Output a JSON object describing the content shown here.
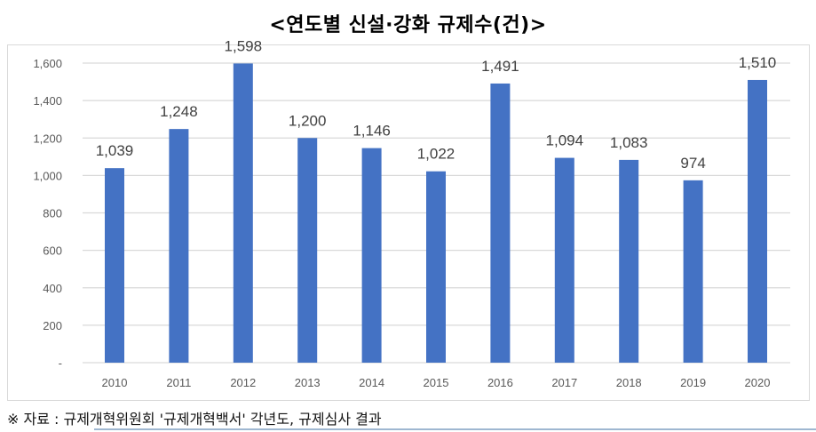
{
  "title": "<연도별 신설·강화 규제수(건)>",
  "source_note": "※ 자료 : 규제개혁위원회 '규제개혁백서' 각년도, 규제심사 결과",
  "colors": {
    "bar": "#4472C4",
    "gridline": "#d9d9d9",
    "axis_text": "#595959",
    "data_label": "#404040"
  },
  "chart_data": {
    "type": "bar",
    "title": "<연도별 신설·강화 규제수(건)>",
    "xlabel": "",
    "ylabel": "",
    "categories": [
      "2010",
      "2011",
      "2012",
      "2013",
      "2014",
      "2015",
      "2016",
      "2017",
      "2018",
      "2019",
      "2020"
    ],
    "values": [
      1039,
      1248,
      1598,
      1200,
      1146,
      1022,
      1491,
      1094,
      1083,
      974,
      1510
    ],
    "value_labels": [
      "1,039",
      "1,248",
      "1,598",
      "1,200",
      "1,146",
      "1,022",
      "1,491",
      "1,094",
      "1,083",
      "974",
      "1,510"
    ],
    "ylim": [
      0,
      1600
    ],
    "yticks": [
      0,
      200,
      400,
      600,
      800,
      1000,
      1200,
      1400,
      1600
    ],
    "ytick_labels": [
      "-",
      "200",
      "400",
      "600",
      "800",
      "1,000",
      "1,200",
      "1,400",
      "1,600"
    ],
    "grid": true,
    "legend": "none"
  }
}
